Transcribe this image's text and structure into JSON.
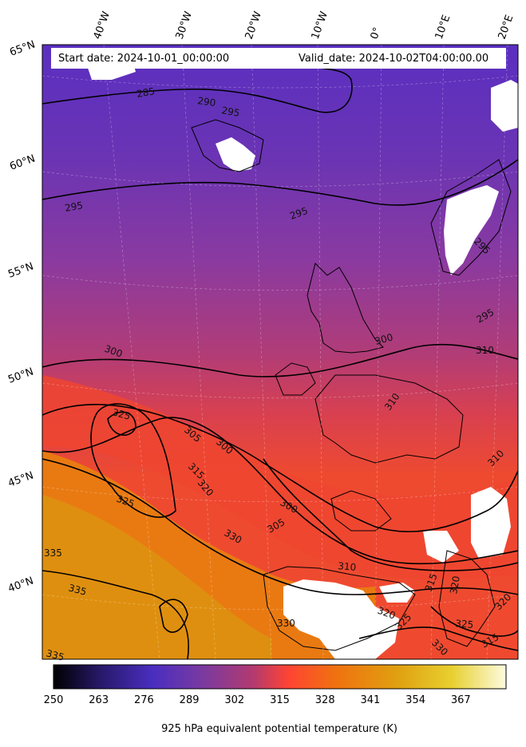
{
  "header": {
    "start_date": "Start date: 2024-10-01_00:00:00",
    "valid_date": "Valid_date: 2024-10-02T04:00:00.00"
  },
  "longitude_labels": [
    "40°W",
    "30°W",
    "20°W",
    "10°W",
    "0°",
    "10°E",
    "20°E"
  ],
  "latitude_labels": [
    "65°N",
    "60°N",
    "55°N",
    "50°N",
    "45°N",
    "40°N"
  ],
  "contour_labels": [
    "285",
    "290",
    "295",
    "295",
    "295",
    "295",
    "295",
    "300",
    "300",
    "300",
    "300",
    "305",
    "305",
    "310",
    "310",
    "310",
    "310",
    "315",
    "315",
    "315",
    "320",
    "320",
    "320",
    "320",
    "325",
    "325",
    "325",
    "325",
    "330",
    "330",
    "330",
    "335",
    "335",
    "335"
  ],
  "colorbar": {
    "ticks": [
      "250",
      "263",
      "276",
      "289",
      "302",
      "315",
      "328",
      "341",
      "354",
      "367"
    ],
    "title": "925 hPa equivalent potential temperature (K)",
    "colors": [
      "#000000",
      "#2a1a6e",
      "#4a2ec0",
      "#7a3aa0",
      "#b23a70",
      "#ff4433",
      "#f07010",
      "#e0a010",
      "#e8d030",
      "#fdfbe0"
    ]
  }
}
